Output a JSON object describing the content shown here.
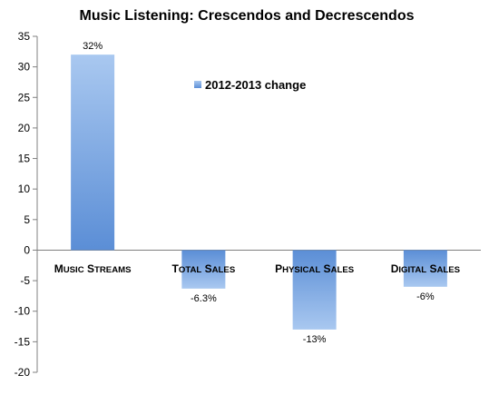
{
  "chart_data": {
    "type": "bar",
    "title": "Music Listening: Crescendos and Decrescendos",
    "categories": [
      "Music streams",
      "Total sales",
      "Physical sales",
      "Digital sales"
    ],
    "series": [
      {
        "name": "2012-2013 change",
        "values": [
          32,
          -6.3,
          -13,
          -6
        ],
        "data_labels": [
          "32%",
          "-6.3%",
          "-13%",
          "-6%"
        ]
      }
    ],
    "ylim": [
      -20,
      35
    ],
    "yticks": [
      35,
      30,
      25,
      20,
      15,
      10,
      5,
      0,
      -5,
      -10,
      -15,
      -20
    ],
    "xlabel": "",
    "ylabel": "",
    "grid": false,
    "legend_position": "top-center",
    "colors": {
      "bar_light": "#a9c8f0",
      "bar_dark": "#5b8ed6"
    }
  }
}
